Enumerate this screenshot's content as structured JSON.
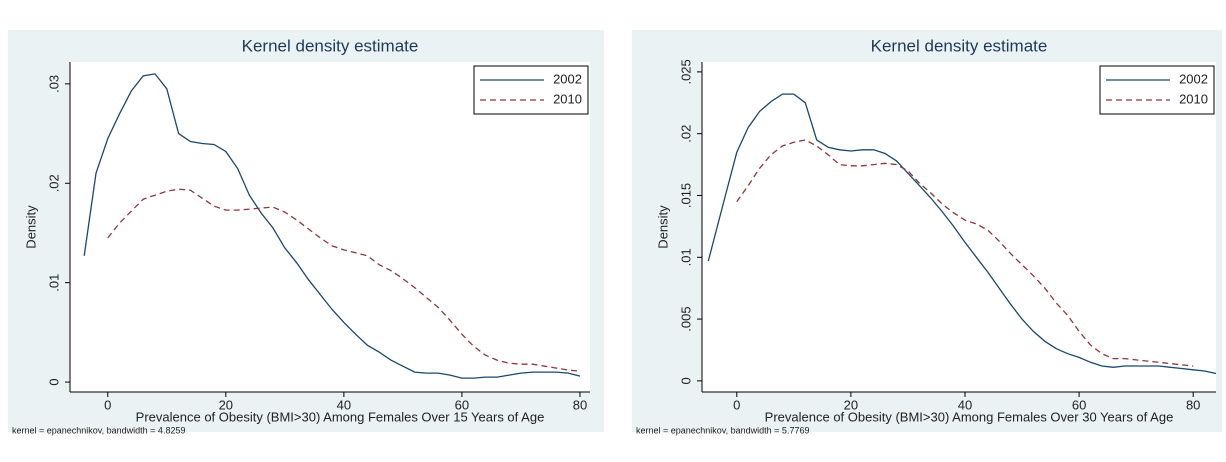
{
  "chart_data": [
    {
      "type": "line",
      "title": "Kernel density estimate",
      "ylabel": "Density",
      "xlabel": "Prevalence of Obesity (BMI>30) Among Females Over 15 Years of Age",
      "note": "kernel = epanechnikov, bandwidth = 4.8259",
      "x": [
        -4,
        -2,
        0,
        2,
        4,
        6,
        8,
        10,
        12,
        14,
        16,
        18,
        20,
        22,
        24,
        26,
        28,
        30,
        32,
        34,
        36,
        38,
        40,
        42,
        44,
        46,
        48,
        50,
        52,
        54,
        56,
        58,
        60,
        62,
        64,
        66,
        68,
        70,
        72,
        74,
        76,
        78,
        80
      ],
      "series": [
        {
          "name": "2002",
          "color": "#1a476f",
          "dashed": false,
          "values": [
            0.0127,
            0.021,
            0.0245,
            0.027,
            0.0293,
            0.0308,
            0.031,
            0.0295,
            0.025,
            0.0242,
            0.024,
            0.0239,
            0.0232,
            0.0215,
            0.0188,
            0.017,
            0.0155,
            0.0135,
            0.012,
            0.0103,
            0.0088,
            0.0073,
            0.006,
            0.0048,
            0.0037,
            0.003,
            0.0022,
            0.0016,
            0.001,
            0.0009,
            0.0009,
            0.0007,
            0.0004,
            0.0004,
            0.0005,
            0.0005,
            0.0007,
            0.0009,
            0.001,
            0.001,
            0.001,
            0.0009,
            0.0006
          ]
        },
        {
          "name": "2010",
          "color": "#90353b",
          "dashed": true,
          "values": [
            null,
            null,
            0.0145,
            0.016,
            0.0172,
            0.0184,
            0.0188,
            0.0192,
            0.0194,
            0.0193,
            0.0185,
            0.0177,
            0.0173,
            0.0173,
            0.0174,
            0.0175,
            0.0176,
            0.0171,
            0.0163,
            0.0154,
            0.0145,
            0.0137,
            0.0133,
            0.013,
            0.0127,
            0.0118,
            0.0112,
            0.0104,
            0.0095,
            0.0085,
            0.0075,
            0.0062,
            0.0048,
            0.0036,
            0.0027,
            0.0022,
            0.0019,
            0.0018,
            0.0018,
            0.0016,
            0.0014,
            0.0012,
            0.0011
          ]
        }
      ],
      "xlim": [
        -6.4,
        81.7
      ],
      "xticks": [
        0,
        20,
        40,
        60,
        80
      ],
      "ylim": [
        -0.001,
        0.0322
      ],
      "yticks": [
        0,
        {
          "value": 0.01,
          "label": ".01"
        },
        {
          "value": 0.02,
          "label": ".02"
        },
        {
          "value": 0.03,
          "label": ".03"
        }
      ],
      "legend": "top-right"
    },
    {
      "type": "line",
      "title": "Kernel density estimate",
      "ylabel": "Density",
      "xlabel": "Prevalence of Obesity (BMI>30) Among Females Over 30 Years of Age",
      "note": "kernel = epanechnikov, bandwidth = 5.7769",
      "x": [
        -5,
        -2,
        0,
        2,
        4,
        6,
        8,
        10,
        12,
        14,
        16,
        18,
        20,
        22,
        24,
        26,
        28,
        30,
        32,
        34,
        36,
        38,
        40,
        42,
        44,
        46,
        48,
        50,
        52,
        54,
        56,
        58,
        60,
        62,
        64,
        66,
        68,
        70,
        72,
        74,
        76,
        78,
        80,
        82,
        84
      ],
      "series": [
        {
          "name": "2002",
          "color": "#1a476f",
          "dashed": false,
          "values": [
            0.0097,
            0.015,
            0.0185,
            0.0205,
            0.0218,
            0.0226,
            0.0232,
            0.0232,
            0.0225,
            0.0195,
            0.0189,
            0.0187,
            0.0186,
            0.0187,
            0.0187,
            0.0184,
            0.0178,
            0.0168,
            0.0158,
            0.0148,
            0.0137,
            0.0125,
            0.0112,
            0.01,
            0.0088,
            0.0075,
            0.0062,
            0.005,
            0.004,
            0.0032,
            0.0026,
            0.0022,
            0.0019,
            0.0015,
            0.0012,
            0.0011,
            0.0012,
            0.0012,
            0.0012,
            0.0012,
            0.0011,
            0.001,
            0.0009,
            0.0008,
            0.0006
          ]
        },
        {
          "name": "2010",
          "color": "#90353b",
          "dashed": true,
          "values": [
            null,
            null,
            0.0145,
            0.0158,
            0.0172,
            0.0183,
            0.019,
            0.0193,
            0.0195,
            0.019,
            0.0183,
            0.0175,
            0.0174,
            0.0174,
            0.0175,
            0.0176,
            0.0175,
            0.017,
            0.016,
            0.0152,
            0.0143,
            0.0136,
            0.013,
            0.0127,
            0.0122,
            0.0113,
            0.0103,
            0.0094,
            0.0085,
            0.0075,
            0.0063,
            0.0053,
            0.004,
            0.0029,
            0.0022,
            0.0018,
            0.0018,
            0.0017,
            0.0016,
            0.0015,
            0.0014,
            0.0013,
            0.0012,
            null,
            null
          ]
        }
      ],
      "xlim": [
        -6.1,
        84
      ],
      "xticks": [
        0,
        20,
        40,
        60,
        80
      ],
      "ylim": [
        -0.0009,
        0.0258
      ],
      "yticks": [
        0,
        {
          "value": 0.005,
          "label": ".005"
        },
        {
          "value": 0.01,
          "label": ".01"
        },
        {
          "value": 0.015,
          "label": ".015"
        },
        {
          "value": 0.02,
          "label": ".02"
        },
        {
          "value": 0.025,
          "label": ".025"
        }
      ],
      "legend": "top-right"
    }
  ]
}
